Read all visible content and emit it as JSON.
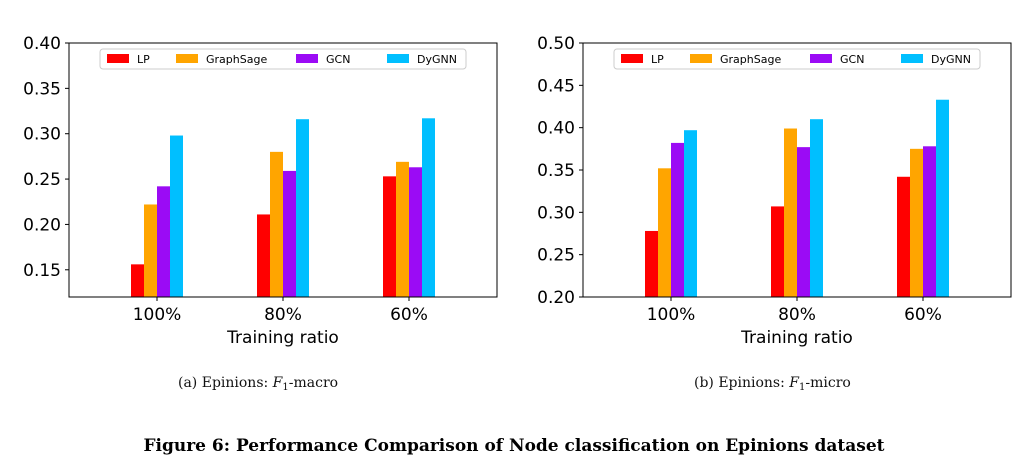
{
  "chart_data": [
    {
      "type": "bar",
      "categories": [
        "100%",
        "80%",
        "60%"
      ],
      "xlabel": "Training ratio",
      "ylabel": "",
      "ylim": [
        0.12,
        0.4
      ],
      "yticks": [
        "0.15",
        "0.20",
        "0.25",
        "0.30",
        "0.35",
        "0.40"
      ],
      "legend": "top",
      "grid": false,
      "series": [
        {
          "name": "LP",
          "color": "#ff0000",
          "values": [
            0.156,
            0.211,
            0.253
          ]
        },
        {
          "name": "GraphSage",
          "color": "#ffa500",
          "values": [
            0.222,
            0.28,
            0.269
          ]
        },
        {
          "name": "GCN",
          "color": "#9b0bf5",
          "values": [
            0.242,
            0.259,
            0.263
          ]
        },
        {
          "name": "DyGNN",
          "color": "#00bfff",
          "values": [
            0.298,
            0.316,
            0.317
          ]
        }
      ]
    },
    {
      "type": "bar",
      "categories": [
        "100%",
        "80%",
        "60%"
      ],
      "xlabel": "Training ratio",
      "ylabel": "",
      "ylim": [
        0.2,
        0.5
      ],
      "yticks": [
        "0.20",
        "0.25",
        "0.30",
        "0.35",
        "0.40",
        "0.45",
        "0.50"
      ],
      "legend": "top",
      "grid": false,
      "series": [
        {
          "name": "LP",
          "color": "#ff0000",
          "values": [
            0.278,
            0.307,
            0.342
          ]
        },
        {
          "name": "GraphSage",
          "color": "#ffa500",
          "values": [
            0.352,
            0.399,
            0.375
          ]
        },
        {
          "name": "GCN",
          "color": "#9b0bf5",
          "values": [
            0.382,
            0.377,
            0.378
          ]
        },
        {
          "name": "DyGNN",
          "color": "#00bfff",
          "values": [
            0.397,
            0.41,
            0.433
          ]
        }
      ]
    }
  ],
  "captions": {
    "left": {
      "prefix": "(a)  Epinions: ",
      "f": "F",
      "sub": "1",
      "suffix": "-macro"
    },
    "right": {
      "prefix": "(b)  Epinions: ",
      "f": "F",
      "sub": "1",
      "suffix": "-micro"
    }
  },
  "figure_title": "Figure 6: Performance Comparison of Node classification on Epinions dataset"
}
